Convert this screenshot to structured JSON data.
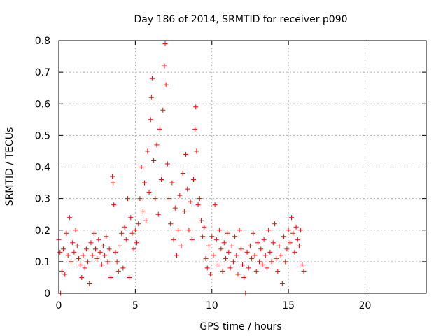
{
  "chart_data": {
    "type": "scatter",
    "title": "Day 186 of 2014, SRMTID for receiver p090",
    "xlabel": "GPS time / hours",
    "ylabel": "SRMTID / TECUs",
    "xlim": [
      0,
      24
    ],
    "ylim": [
      0,
      0.8
    ],
    "x_ticks": [
      0,
      5,
      10,
      15,
      20
    ],
    "x_tick_labels": [
      "0",
      "5",
      "10",
      "15",
      "20"
    ],
    "y_ticks": [
      0,
      0.1,
      0.2,
      0.3,
      0.4,
      0.5,
      0.6,
      0.7,
      0.8
    ],
    "y_tick_labels": [
      "0",
      "0.1",
      "0.2",
      "0.3",
      "0.4",
      "0.5",
      "0.6",
      "0.7",
      "0.8"
    ],
    "grid": true,
    "marker": "+",
    "marker_color": "#ff0000",
    "series": [
      {
        "name": "SRMTID",
        "points": [
          [
            0.0,
            0.17
          ],
          [
            0.08,
            0.13
          ],
          [
            0.12,
            0.0
          ],
          [
            0.2,
            0.07
          ],
          [
            0.3,
            0.14
          ],
          [
            0.4,
            0.06
          ],
          [
            0.5,
            0.19
          ],
          [
            0.6,
            0.12
          ],
          [
            0.7,
            0.24
          ],
          [
            0.8,
            0.1
          ],
          [
            0.9,
            0.16
          ],
          [
            1.0,
            0.13
          ],
          [
            1.1,
            0.2
          ],
          [
            1.2,
            0.15
          ],
          [
            1.3,
            0.11
          ],
          [
            1.4,
            0.09
          ],
          [
            1.5,
            0.05
          ],
          [
            1.6,
            0.12
          ],
          [
            1.7,
            0.08
          ],
          [
            1.8,
            0.14
          ],
          [
            1.9,
            0.1
          ],
          [
            2.0,
            0.03
          ],
          [
            2.1,
            0.16
          ],
          [
            2.2,
            0.12
          ],
          [
            2.3,
            0.19
          ],
          [
            2.4,
            0.14
          ],
          [
            2.5,
            0.11
          ],
          [
            2.6,
            0.17
          ],
          [
            2.7,
            0.13
          ],
          [
            2.8,
            0.09
          ],
          [
            2.9,
            0.15
          ],
          [
            3.0,
            0.12
          ],
          [
            3.1,
            0.18
          ],
          [
            3.2,
            0.1
          ],
          [
            3.3,
            0.14
          ],
          [
            3.4,
            0.05
          ],
          [
            3.5,
            0.37
          ],
          [
            3.55,
            0.35
          ],
          [
            3.6,
            0.28
          ],
          [
            3.7,
            0.13
          ],
          [
            3.8,
            0.1
          ],
          [
            3.9,
            0.07
          ],
          [
            4.0,
            0.15
          ],
          [
            4.1,
            0.19
          ],
          [
            4.2,
            0.08
          ],
          [
            4.3,
            0.21
          ],
          [
            4.4,
            0.17
          ],
          [
            4.5,
            0.3
          ],
          [
            4.6,
            0.05
          ],
          [
            4.7,
            0.24
          ],
          [
            4.8,
            0.19
          ],
          [
            4.9,
            0.14
          ],
          [
            5.0,
            0.2
          ],
          [
            5.1,
            0.16
          ],
          [
            5.2,
            0.22
          ],
          [
            5.3,
            0.3
          ],
          [
            5.4,
            0.4
          ],
          [
            5.5,
            0.26
          ],
          [
            5.6,
            0.35
          ],
          [
            5.7,
            0.23
          ],
          [
            5.8,
            0.45
          ],
          [
            5.9,
            0.32
          ],
          [
            6.0,
            0.55
          ],
          [
            6.05,
            0.62
          ],
          [
            6.1,
            0.68
          ],
          [
            6.2,
            0.42
          ],
          [
            6.3,
            0.3
          ],
          [
            6.4,
            0.47
          ],
          [
            6.5,
            0.25
          ],
          [
            6.6,
            0.52
          ],
          [
            6.7,
            0.36
          ],
          [
            6.8,
            0.58
          ],
          [
            6.9,
            0.72
          ],
          [
            6.95,
            0.79
          ],
          [
            7.0,
            0.66
          ],
          [
            7.1,
            0.41
          ],
          [
            7.2,
            0.3
          ],
          [
            7.3,
            0.22
          ],
          [
            7.4,
            0.35
          ],
          [
            7.5,
            0.17
          ],
          [
            7.6,
            0.27
          ],
          [
            7.7,
            0.12
          ],
          [
            7.8,
            0.2
          ],
          [
            7.9,
            0.31
          ],
          [
            8.0,
            0.15
          ],
          [
            8.1,
            0.38
          ],
          [
            8.2,
            0.26
          ],
          [
            8.3,
            0.44
          ],
          [
            8.4,
            0.33
          ],
          [
            8.5,
            0.2
          ],
          [
            8.6,
            0.29
          ],
          [
            8.7,
            0.17
          ],
          [
            8.8,
            0.36
          ],
          [
            8.9,
            0.52
          ],
          [
            8.95,
            0.59
          ],
          [
            9.0,
            0.45
          ],
          [
            9.1,
            0.28
          ],
          [
            9.2,
            0.3
          ],
          [
            9.3,
            0.23
          ],
          [
            9.4,
            0.18
          ],
          [
            9.5,
            0.21
          ],
          [
            9.6,
            0.11
          ],
          [
            9.7,
            0.08
          ],
          [
            9.8,
            0.15
          ],
          [
            9.9,
            0.06
          ],
          [
            10.0,
            0.18
          ],
          [
            10.1,
            0.12
          ],
          [
            10.2,
            0.28
          ],
          [
            10.3,
            0.17
          ],
          [
            10.4,
            0.09
          ],
          [
            10.5,
            0.2
          ],
          [
            10.6,
            0.14
          ],
          [
            10.7,
            0.07
          ],
          [
            10.8,
            0.16
          ],
          [
            10.9,
            0.11
          ],
          [
            11.0,
            0.19
          ],
          [
            11.1,
            0.13
          ],
          [
            11.2,
            0.08
          ],
          [
            11.3,
            0.15
          ],
          [
            11.4,
            0.1
          ],
          [
            11.5,
            0.18
          ],
          [
            11.6,
            0.12
          ],
          [
            11.7,
            0.06
          ],
          [
            11.8,
            0.2
          ],
          [
            11.9,
            0.14
          ],
          [
            12.0,
            0.09
          ],
          [
            12.1,
            0.05
          ],
          [
            12.2,
            0.0
          ],
          [
            12.3,
            0.13
          ],
          [
            12.4,
            0.08
          ],
          [
            12.5,
            0.15
          ],
          [
            12.6,
            0.11
          ],
          [
            12.7,
            0.19
          ],
          [
            12.8,
            0.12
          ],
          [
            12.9,
            0.07
          ],
          [
            13.0,
            0.16
          ],
          [
            13.1,
            0.1
          ],
          [
            13.2,
            0.14
          ],
          [
            13.3,
            0.09
          ],
          [
            13.4,
            0.17
          ],
          [
            13.5,
            0.12
          ],
          [
            13.6,
            0.08
          ],
          [
            13.7,
            0.2
          ],
          [
            13.8,
            0.13
          ],
          [
            13.9,
            0.1
          ],
          [
            14.0,
            0.16
          ],
          [
            14.1,
            0.22
          ],
          [
            14.2,
            0.11
          ],
          [
            14.3,
            0.07
          ],
          [
            14.4,
            0.15
          ],
          [
            14.5,
            0.12
          ],
          [
            14.6,
            0.03
          ],
          [
            14.7,
            0.18
          ],
          [
            14.8,
            0.1
          ],
          [
            14.9,
            0.14
          ],
          [
            15.0,
            0.2
          ],
          [
            15.1,
            0.16
          ],
          [
            15.2,
            0.24
          ],
          [
            15.3,
            0.19
          ],
          [
            15.4,
            0.13
          ],
          [
            15.5,
            0.21
          ],
          [
            15.6,
            0.17
          ],
          [
            15.7,
            0.15
          ],
          [
            15.8,
            0.2
          ],
          [
            15.9,
            0.09
          ],
          [
            16.0,
            0.07
          ]
        ]
      }
    ]
  }
}
